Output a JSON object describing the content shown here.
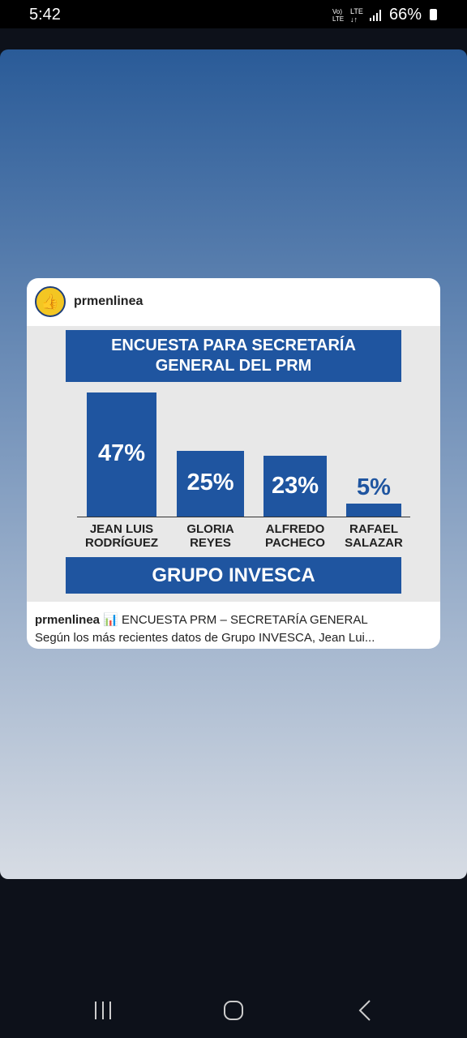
{
  "status_bar": {
    "time": "5:42",
    "battery": "66%"
  },
  "post": {
    "username": "prmenlinea",
    "caption_user": "prmenlinea",
    "caption_line1": "📊 ENCUESTA PRM – SECRETARÍA GENERAL",
    "caption_line2": "Según los más recientes datos de Grupo INVESCA, Jean Lui..."
  },
  "chart_data": {
    "type": "bar",
    "title": "ENCUESTA PARA SECRETARÍA GENERAL DEL PRM",
    "categories": [
      "JEAN LUIS RODRÍGUEZ",
      "GLORIA REYES",
      "ALFREDO PACHECO",
      "RAFAEL SALAZAR"
    ],
    "values": [
      47,
      25,
      23,
      5
    ],
    "value_labels": [
      "47%",
      "25%",
      "23%",
      "5%"
    ],
    "color": "#1f55a0",
    "footer": "GRUPO INVESCA"
  }
}
